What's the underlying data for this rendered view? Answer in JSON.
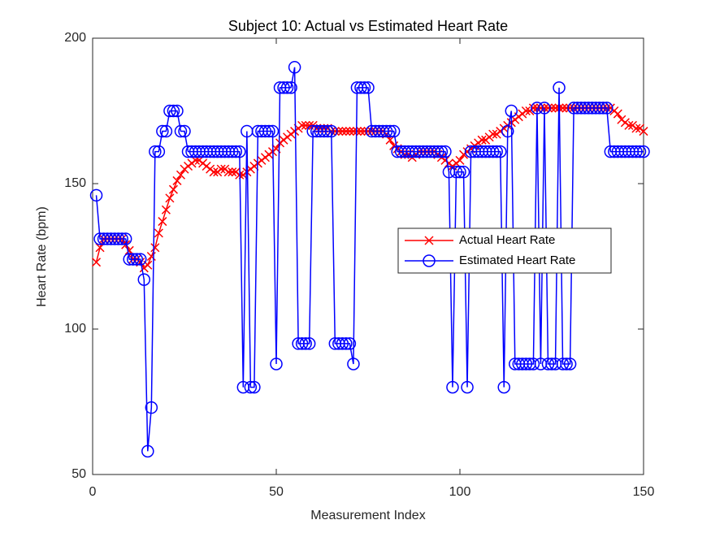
{
  "chart_data": {
    "type": "line",
    "title": "Subject 10: Actual vs Estimated Heart Rate",
    "xlabel": "Measurement Index",
    "ylabel": "Heart Rate (bpm)",
    "x": [
      1,
      2,
      3,
      4,
      5,
      6,
      7,
      8,
      9,
      10,
      11,
      12,
      13,
      14,
      15,
      16,
      17,
      18,
      19,
      20,
      21,
      22,
      23,
      24,
      25,
      26,
      27,
      28,
      29,
      30,
      31,
      32,
      33,
      34,
      35,
      36,
      37,
      38,
      39,
      40,
      41,
      42,
      43,
      44,
      45,
      46,
      47,
      48,
      49,
      50,
      51,
      52,
      53,
      54,
      55,
      56,
      57,
      58,
      59,
      60,
      61,
      62,
      63,
      64,
      65,
      66,
      67,
      68,
      69,
      70,
      71,
      72,
      73,
      74,
      75,
      76,
      77,
      78,
      79,
      80,
      81,
      82,
      83,
      84,
      85,
      86,
      87,
      88,
      89,
      90,
      91,
      92,
      93,
      94,
      95,
      96,
      97,
      98,
      99,
      100,
      101,
      102,
      103,
      104,
      105,
      106,
      107,
      108,
      109,
      110,
      111,
      112,
      113,
      114,
      115,
      116,
      117,
      118,
      119,
      120,
      121,
      122,
      123,
      124,
      125,
      126,
      127,
      128,
      129,
      130,
      131,
      132,
      133,
      134,
      135,
      136,
      137,
      138,
      139,
      140,
      141,
      142,
      143,
      144,
      145,
      146,
      147,
      148,
      149,
      150
    ],
    "series": [
      {
        "name": "Actual Heart Rate",
        "color": "#ff0000",
        "marker": "x",
        "values": [
          123,
          128,
          131,
          131,
          131,
          131,
          131,
          131,
          129,
          127,
          124,
          124,
          123,
          121,
          122,
          125,
          128,
          133,
          137,
          141,
          145,
          148,
          151,
          153,
          155,
          156,
          157,
          158,
          158,
          157,
          156,
          155,
          154,
          154,
          155,
          155,
          154,
          154,
          154,
          153,
          153,
          154,
          155,
          156,
          157,
          158,
          159,
          160,
          161,
          162,
          164,
          165,
          166,
          167,
          168,
          169,
          170,
          170,
          170,
          170,
          169,
          169,
          169,
          169,
          168,
          168,
          168,
          168,
          168,
          168,
          168,
          168,
          168,
          168,
          168,
          168,
          168,
          168,
          168,
          167,
          165,
          163,
          162,
          161,
          160,
          160,
          159,
          160,
          161,
          161,
          161,
          161,
          161,
          160,
          159,
          158,
          157,
          156,
          157,
          158,
          160,
          161,
          162,
          163,
          164,
          165,
          165,
          166,
          167,
          167,
          168,
          169,
          170,
          171,
          172,
          173,
          174,
          175,
          175,
          176,
          176,
          176,
          176,
          176,
          176,
          176,
          176,
          176,
          176,
          176,
          176,
          176,
          176,
          176,
          176,
          176,
          176,
          176,
          176,
          176,
          176,
          175,
          174,
          172,
          171,
          170,
          170,
          169,
          169,
          168
        ]
      },
      {
        "name": "Estimated Heart Rate",
        "color": "#0000ff",
        "marker": "o",
        "values": [
          146,
          131,
          131,
          131,
          131,
          131,
          131,
          131,
          131,
          124,
          124,
          124,
          124,
          117,
          58,
          73,
          161,
          161,
          168,
          168,
          175,
          175,
          175,
          168,
          168,
          161,
          161,
          161,
          161,
          161,
          161,
          161,
          161,
          161,
          161,
          161,
          161,
          161,
          161,
          161,
          80,
          168,
          80,
          80,
          168,
          168,
          168,
          168,
          168,
          88,
          183,
          183,
          183,
          183,
          190,
          95,
          95,
          95,
          95,
          168,
          168,
          168,
          168,
          168,
          168,
          95,
          95,
          95,
          95,
          95,
          88,
          183,
          183,
          183,
          183,
          168,
          168,
          168,
          168,
          168,
          168,
          168,
          161,
          161,
          161,
          161,
          161,
          161,
          161,
          161,
          161,
          161,
          161,
          161,
          161,
          161,
          154,
          80,
          154,
          154,
          154,
          80,
          161,
          161,
          161,
          161,
          161,
          161,
          161,
          161,
          161,
          80,
          168,
          175,
          88,
          88,
          88,
          88,
          88,
          88,
          176,
          88,
          176,
          88,
          88,
          88,
          183,
          88,
          88,
          88,
          176,
          176,
          176,
          176,
          176,
          176,
          176,
          176,
          176,
          176,
          161,
          161,
          161,
          161,
          161,
          161,
          161,
          161,
          161,
          161
        ]
      }
    ],
    "xlim": [
      0,
      150
    ],
    "xticks": [
      0,
      50,
      100,
      150
    ],
    "ylim": [
      50,
      200
    ],
    "yticks": [
      50,
      100,
      150,
      200
    ],
    "legend": "east"
  }
}
